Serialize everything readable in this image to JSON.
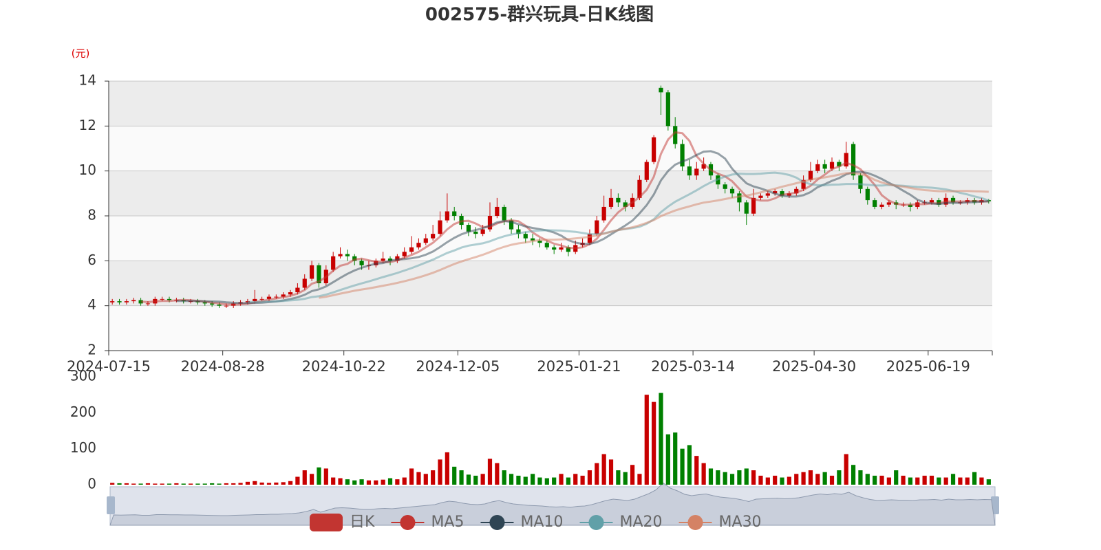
{
  "chart_data": {
    "type": "candlestick",
    "title": "002575-群兴玩具-日K线图",
    "y_unit": "(元)",
    "categories": [
      "2024-07-15",
      null,
      null,
      null,
      null,
      null,
      null,
      null,
      null,
      null,
      null,
      null,
      null,
      null,
      null,
      null,
      "2024-08-28",
      null,
      null,
      null,
      null,
      null,
      null,
      null,
      null,
      null,
      null,
      null,
      null,
      null,
      null,
      null,
      null,
      "2024-10-22",
      null,
      null,
      null,
      null,
      null,
      null,
      null,
      null,
      null,
      null,
      null,
      null,
      null,
      null,
      null,
      "2024-12-05",
      null,
      null,
      null,
      null,
      null,
      null,
      null,
      null,
      null,
      null,
      null,
      null,
      null,
      null,
      null,
      null,
      "2025-01-21",
      null,
      null,
      null,
      null,
      null,
      null,
      null,
      null,
      null,
      null,
      null,
      null,
      null,
      null,
      null,
      "2025-03-14",
      null,
      null,
      null,
      null,
      null,
      null,
      null,
      null,
      null,
      null,
      null,
      null,
      null,
      null,
      null,
      null,
      "2025-04-30",
      null,
      null,
      null,
      null,
      null,
      null,
      null,
      null,
      null,
      null,
      null,
      null,
      null,
      null,
      null,
      "2025-06-19",
      null,
      null,
      null,
      null,
      null,
      null,
      null,
      null
    ],
    "open": [
      4.15,
      4.2,
      4.15,
      4.2,
      4.25,
      4.1,
      4.1,
      4.3,
      4.3,
      4.25,
      4.25,
      4.2,
      4.2,
      4.15,
      4.1,
      4.05,
      4.0,
      4.0,
      4.1,
      4.15,
      4.2,
      4.3,
      4.3,
      4.4,
      4.4,
      4.5,
      4.6,
      4.8,
      5.2,
      5.8,
      5.0,
      5.6,
      6.2,
      6.3,
      6.2,
      6.0,
      5.8,
      5.8,
      6.0,
      6.1,
      6.0,
      6.2,
      6.4,
      6.6,
      6.8,
      7.0,
      7.2,
      7.8,
      8.2,
      8.0,
      7.6,
      7.3,
      7.2,
      7.4,
      8.0,
      8.4,
      7.8,
      7.4,
      7.2,
      7.0,
      6.9,
      6.8,
      6.6,
      6.5,
      6.6,
      6.4,
      6.7,
      6.8,
      7.2,
      7.8,
      8.4,
      8.8,
      8.6,
      8.4,
      8.8,
      9.6,
      10.4,
      13.7,
      13.5,
      12.0,
      11.2,
      10.2,
      9.8,
      10.1,
      10.3,
      9.8,
      9.4,
      9.2,
      9.0,
      8.6,
      8.1,
      8.8,
      8.9,
      9.0,
      9.1,
      8.9,
      9.0,
      9.2,
      9.6,
      10.0,
      10.3,
      10.1,
      10.4,
      10.2,
      11.2,
      9.8,
      9.2,
      8.7,
      8.4,
      8.5,
      8.6,
      8.5,
      8.5,
      8.4,
      8.6,
      8.6,
      8.7,
      8.5,
      8.8,
      8.6,
      8.6,
      8.7,
      8.6,
      8.7
    ],
    "close": [
      4.2,
      4.15,
      4.2,
      4.25,
      4.1,
      4.1,
      4.3,
      4.3,
      4.25,
      4.25,
      4.2,
      4.2,
      4.15,
      4.1,
      4.05,
      4.0,
      4.0,
      4.1,
      4.15,
      4.2,
      4.3,
      4.3,
      4.4,
      4.4,
      4.5,
      4.6,
      4.8,
      5.2,
      5.8,
      5.0,
      5.6,
      6.2,
      6.3,
      6.2,
      6.0,
      5.8,
      5.8,
      6.0,
      6.1,
      6.0,
      6.2,
      6.4,
      6.6,
      6.8,
      7.0,
      7.2,
      7.8,
      8.2,
      8.0,
      7.6,
      7.3,
      7.2,
      7.4,
      8.0,
      8.4,
      7.8,
      7.4,
      7.2,
      7.0,
      6.9,
      6.8,
      6.6,
      6.5,
      6.6,
      6.4,
      6.7,
      6.8,
      7.2,
      7.8,
      8.4,
      8.8,
      8.6,
      8.4,
      8.8,
      9.6,
      10.4,
      11.5,
      13.5,
      12.0,
      11.2,
      10.2,
      9.8,
      10.1,
      10.3,
      9.8,
      9.4,
      9.2,
      9.0,
      8.6,
      8.1,
      8.8,
      8.9,
      9.0,
      9.1,
      8.9,
      9.0,
      9.2,
      9.6,
      10.0,
      10.3,
      10.1,
      10.4,
      10.2,
      10.8,
      9.8,
      9.2,
      8.7,
      8.4,
      8.5,
      8.6,
      8.5,
      8.5,
      8.4,
      8.6,
      8.6,
      8.7,
      8.5,
      8.8,
      8.6,
      8.6,
      8.7,
      8.6,
      8.7,
      8.65
    ],
    "high": [
      4.3,
      4.3,
      4.3,
      4.35,
      4.35,
      4.2,
      4.4,
      4.4,
      4.4,
      4.35,
      4.35,
      4.3,
      4.3,
      4.25,
      4.2,
      4.15,
      4.1,
      4.2,
      4.25,
      4.3,
      4.7,
      4.4,
      4.5,
      4.5,
      4.6,
      4.7,
      5.0,
      5.4,
      6.0,
      5.9,
      5.8,
      6.4,
      6.6,
      6.5,
      6.3,
      6.1,
      6.0,
      6.1,
      6.4,
      6.2,
      6.3,
      6.6,
      7.1,
      7.0,
      7.2,
      7.6,
      8.2,
      9.0,
      8.4,
      8.1,
      7.7,
      7.5,
      7.6,
      8.6,
      8.8,
      8.5,
      7.9,
      7.6,
      7.3,
      7.2,
      7.0,
      6.9,
      6.7,
      6.8,
      6.7,
      6.9,
      7.0,
      7.4,
      8.0,
      8.9,
      9.2,
      9.0,
      8.7,
      9.0,
      9.8,
      10.5,
      11.6,
      13.8,
      13.6,
      12.4,
      11.4,
      10.5,
      10.4,
      10.6,
      10.4,
      9.9,
      9.5,
      9.3,
      9.1,
      8.7,
      9.2,
      9.0,
      9.1,
      9.2,
      9.2,
      9.1,
      9.3,
      9.8,
      10.4,
      10.5,
      10.5,
      10.6,
      10.5,
      11.3,
      11.3,
      9.9,
      9.3,
      8.8,
      8.6,
      8.7,
      8.7,
      8.6,
      8.6,
      8.7,
      8.7,
      8.8,
      8.8,
      9.0,
      8.9,
      8.7,
      8.8,
      8.8,
      8.8,
      8.75
    ],
    "low": [
      4.05,
      4.05,
      4.05,
      4.1,
      4.0,
      4.0,
      4.0,
      4.2,
      4.15,
      4.15,
      4.1,
      4.1,
      4.05,
      4.0,
      3.95,
      3.9,
      3.9,
      3.9,
      4.0,
      4.05,
      4.1,
      4.2,
      4.2,
      4.3,
      4.3,
      4.4,
      4.5,
      4.7,
      5.1,
      4.8,
      4.9,
      5.5,
      6.1,
      6.0,
      5.8,
      5.6,
      5.6,
      5.7,
      5.9,
      5.8,
      5.9,
      6.1,
      6.3,
      6.5,
      6.7,
      6.9,
      7.1,
      7.7,
      7.8,
      7.4,
      7.1,
      7.0,
      7.1,
      7.3,
      7.9,
      7.6,
      7.2,
      7.0,
      6.8,
      6.7,
      6.6,
      6.5,
      6.3,
      6.4,
      6.2,
      6.3,
      6.6,
      6.7,
      7.1,
      7.7,
      8.3,
      8.4,
      8.2,
      8.3,
      8.7,
      9.5,
      10.3,
      12.5,
      11.8,
      11.0,
      10.0,
      9.6,
      9.6,
      10.0,
      9.6,
      9.2,
      9.0,
      8.8,
      8.2,
      7.6,
      8.0,
      8.7,
      8.8,
      8.9,
      8.8,
      8.8,
      8.9,
      9.1,
      9.5,
      9.9,
      9.9,
      10.0,
      10.0,
      10.1,
      9.6,
      9.0,
      8.5,
      8.3,
      8.3,
      8.4,
      8.3,
      8.4,
      8.2,
      8.3,
      8.5,
      8.5,
      8.4,
      8.4,
      8.5,
      8.5,
      8.5,
      8.5,
      8.5,
      8.55
    ],
    "volume": [
      5,
      4,
      4,
      3,
      3,
      4,
      3,
      3,
      3,
      4,
      3,
      3,
      3,
      3,
      4,
      3,
      4,
      4,
      5,
      8,
      10,
      6,
      5,
      6,
      7,
      10,
      22,
      40,
      30,
      48,
      45,
      20,
      18,
      15,
      12,
      15,
      12,
      12,
      14,
      18,
      15,
      20,
      45,
      35,
      30,
      40,
      70,
      90,
      50,
      40,
      28,
      25,
      30,
      72,
      60,
      40,
      30,
      25,
      22,
      30,
      20,
      18,
      20,
      30,
      20,
      30,
      25,
      40,
      60,
      85,
      70,
      40,
      35,
      55,
      30,
      250,
      230,
      255,
      140,
      145,
      100,
      110,
      80,
      60,
      45,
      40,
      35,
      30,
      40,
      45,
      40,
      25,
      20,
      25,
      20,
      22,
      30,
      35,
      40,
      30,
      35,
      25,
      40,
      85,
      55,
      40,
      30,
      25,
      25,
      20,
      40,
      25,
      20,
      20,
      25,
      25,
      20,
      20,
      30,
      20,
      20,
      35,
      20,
      15
    ],
    "up_color": "#c80000",
    "down_color": "#008000",
    "series": [
      {
        "name": "日K",
        "color": "#c23531"
      },
      {
        "name": "MA5",
        "color": "#c23531"
      },
      {
        "name": "MA10",
        "color": "#2f4554"
      },
      {
        "name": "MA20",
        "color": "#61a0a8"
      },
      {
        "name": "MA30",
        "color": "#d48265"
      }
    ],
    "ylim": [
      2,
      14
    ],
    "yticks": [
      2,
      4,
      6,
      8,
      10,
      12,
      14
    ],
    "volume_ylim": [
      0,
      300
    ],
    "volume_yticks": [
      0,
      100,
      200,
      300
    ]
  }
}
